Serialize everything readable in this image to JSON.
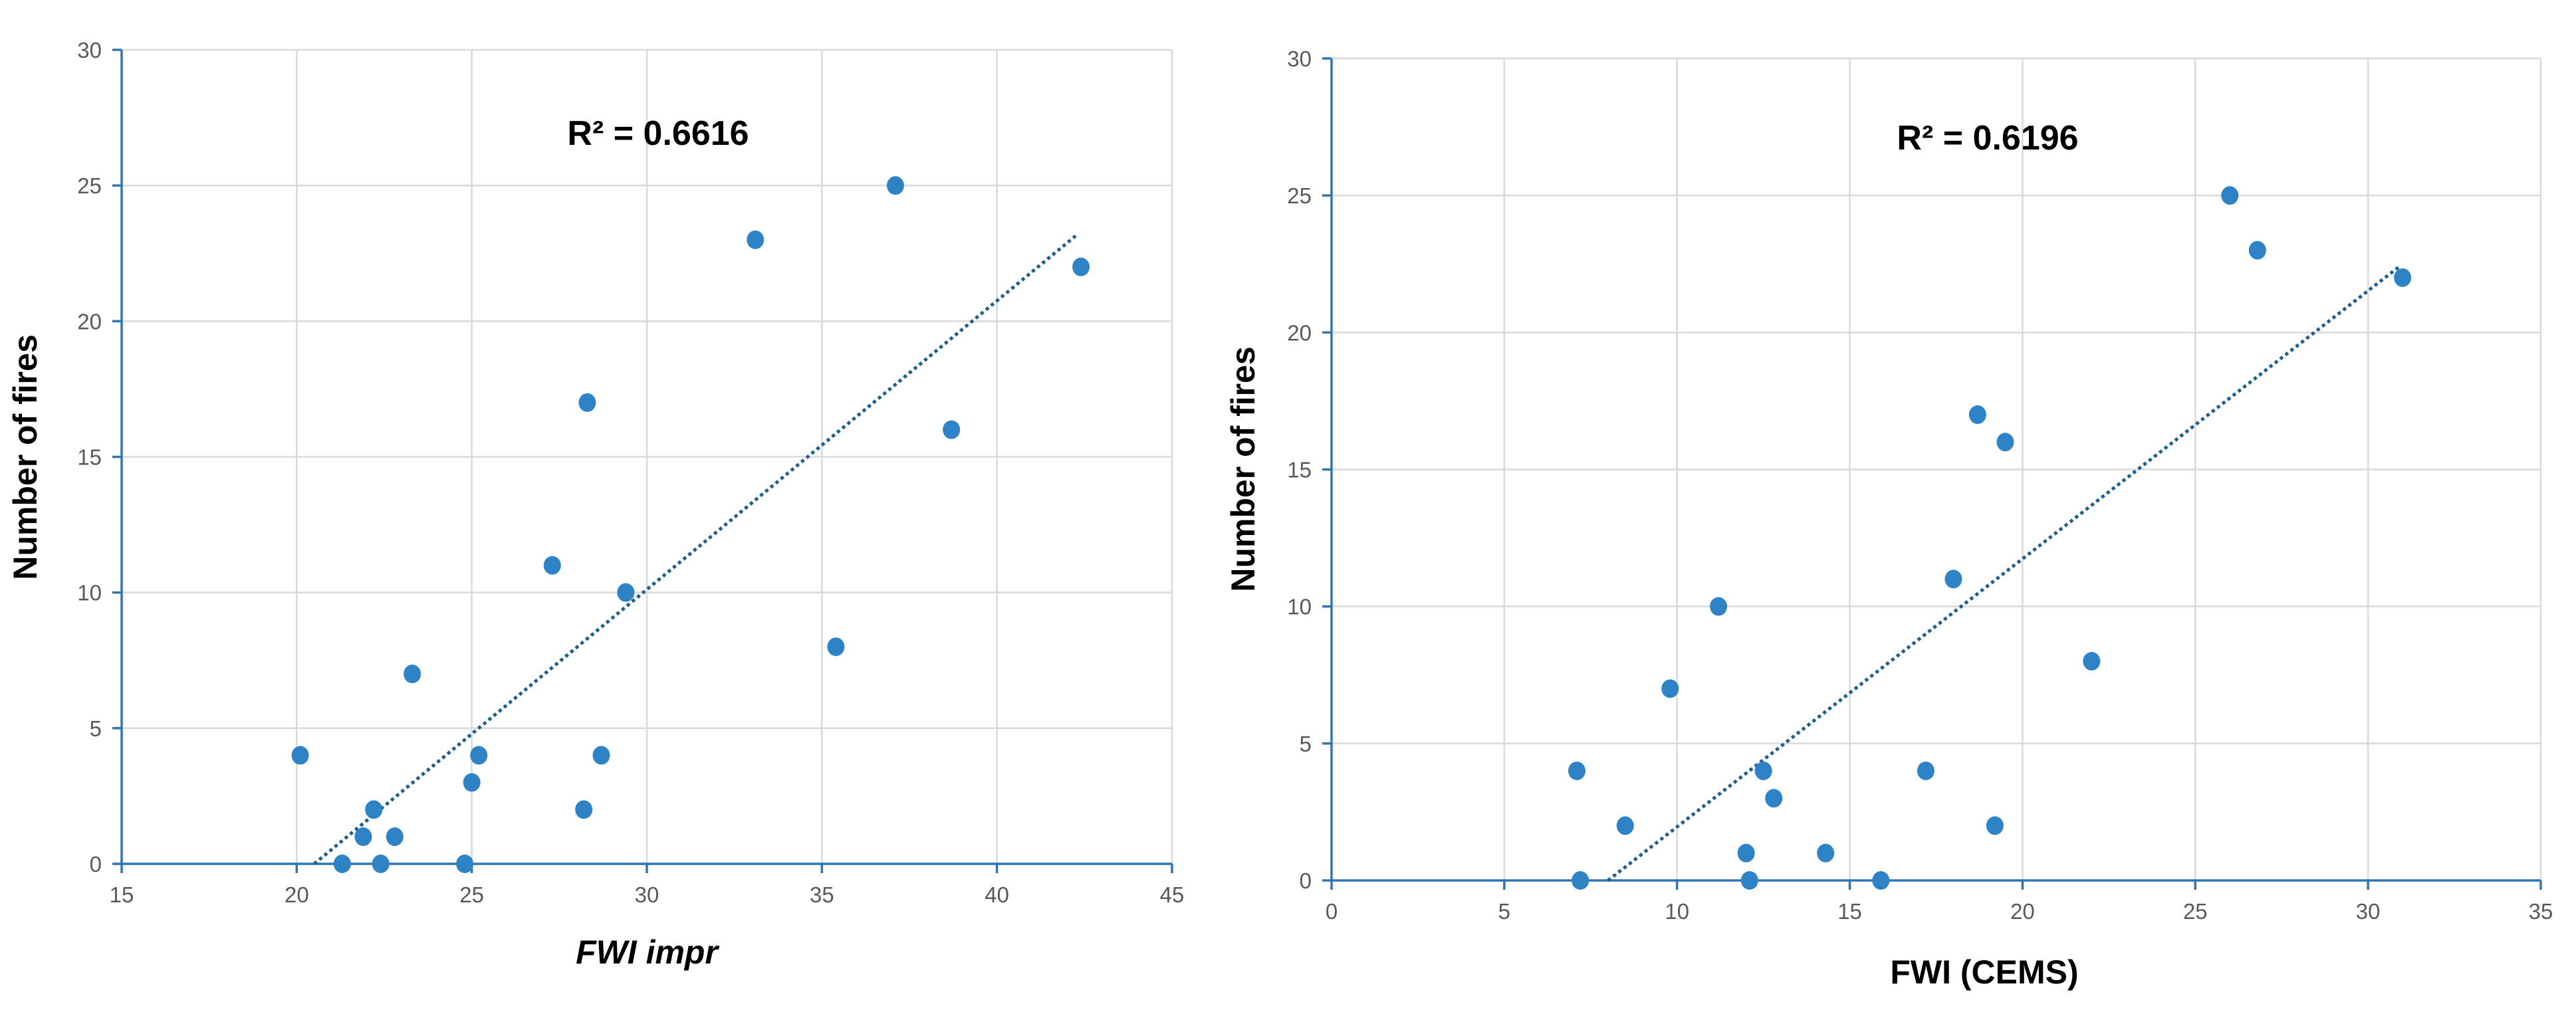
{
  "chart_data": [
    {
      "type": "scatter",
      "xlabel": "FWI impr",
      "ylabel": "Number of fires",
      "xlim": [
        15,
        45
      ],
      "ylim": [
        0,
        30
      ],
      "xticks": [
        "15",
        "20",
        "25",
        "30",
        "35",
        "40",
        "45"
      ],
      "yticks": [
        "0",
        "5",
        "10",
        "15",
        "20",
        "25",
        "30"
      ],
      "annotation": "R² = 0.6616",
      "grid": true,
      "trendline": {
        "type": "linear",
        "from": [
          20.5,
          0
        ],
        "to": [
          42.3,
          23.2
        ]
      },
      "x": [
        20.1,
        21.3,
        21.9,
        22.2,
        22.4,
        22.8,
        23.3,
        24.8,
        25.0,
        25.2,
        27.3,
        28.2,
        28.3,
        28.7,
        29.4,
        33.1,
        35.4,
        37.1,
        38.7,
        42.4
      ],
      "y": [
        4,
        0,
        1,
        2,
        0,
        1,
        7,
        0,
        3,
        4,
        11,
        2,
        17,
        4,
        10,
        23,
        8,
        25,
        16,
        22
      ]
    },
    {
      "type": "scatter",
      "xlabel": "FWI (CEMS)",
      "ylabel": "Number of fires",
      "xlim": [
        0,
        35
      ],
      "ylim": [
        0,
        30
      ],
      "xticks": [
        "0",
        "5",
        "10",
        "15",
        "20",
        "25",
        "30",
        "35"
      ],
      "yticks": [
        "0",
        "5",
        "10",
        "15",
        "20",
        "25",
        "30"
      ],
      "annotation": "R² = 0.6196",
      "grid": true,
      "trendline": {
        "type": "linear",
        "from": [
          8.0,
          0
        ],
        "to": [
          30.9,
          22.4
        ]
      },
      "x": [
        7.1,
        7.2,
        8.5,
        9.8,
        11.2,
        12.0,
        12.1,
        12.5,
        12.8,
        14.3,
        15.9,
        17.2,
        18.0,
        18.7,
        19.2,
        19.5,
        22.0,
        26.0,
        26.8,
        31.0
      ],
      "y": [
        4,
        0,
        2,
        7,
        10,
        1,
        0,
        4,
        3,
        1,
        0,
        4,
        11,
        17,
        2,
        16,
        8,
        25,
        23,
        22
      ]
    }
  ]
}
